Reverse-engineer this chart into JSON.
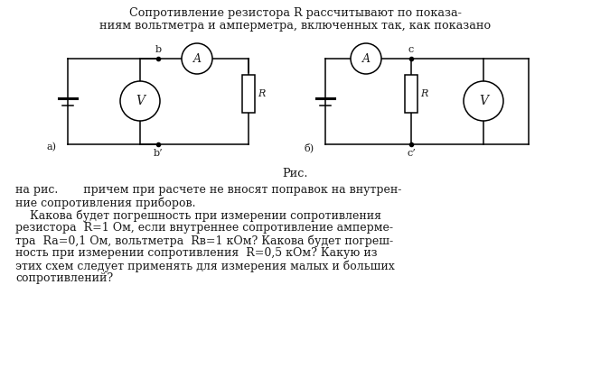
{
  "title_line1": "Сопротивление резистора R рассчитывают по показа-",
  "title_line2": "ниям вольтметра и амперметра, включенных так, как показано",
  "caption": "Рис.",
  "text_line1": "на рис.       причем при расчете не вносят поправок на внутрен-",
  "text_line2": "ние сопротивления приборов.",
  "text_line3": "    Какова будет погрешность при измерении сопротивления",
  "text_line4": "резистора  R=1 Ом, если внутреннее сопротивление амперме-",
  "text_line5": "тра  Ra=0,1 Ом, вольтметра  Rв=1 кОм? Какова будет погреш-",
  "text_line6": "ность при измерении сопротивления  R=0,5 кОм? Какую из",
  "text_line7": "этих схем следует применять для измерения малых и больших",
  "text_line8": "сопротивлений?",
  "bg_color": "#ffffff",
  "text_color": "#1a1a1a",
  "label_a": "а)",
  "label_b": "б)",
  "node_b": "b",
  "node_b_prime": "b’",
  "node_c": "c",
  "node_c_prime": "c’",
  "ammeter_label": "A",
  "voltmeter_label": "V",
  "resistor_label": "R"
}
